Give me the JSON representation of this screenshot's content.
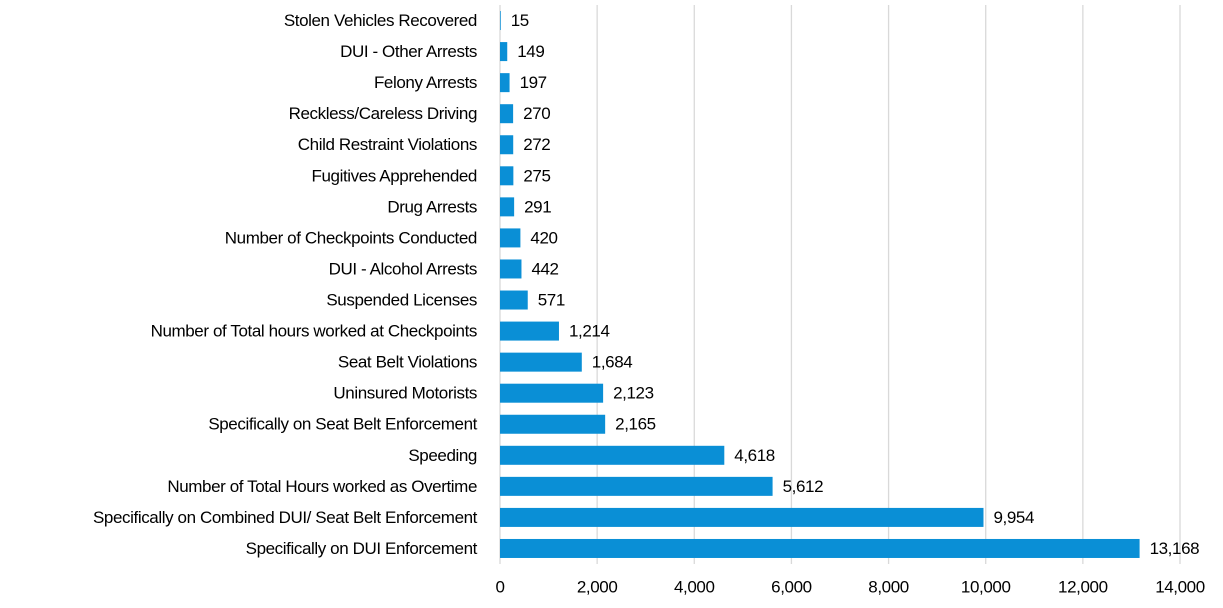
{
  "chart_data": {
    "type": "barh",
    "categories": [
      "Stolen Vehicles Recovered",
      "DUI - Other Arrests",
      "Felony Arrests",
      "Reckless/Careless Driving",
      "Child Restraint Violations",
      "Fugitives Apprehended",
      "Drug Arrests",
      "Number of Checkpoints Conducted",
      "DUI - Alcohol Arrests",
      "Suspended Licenses",
      "Number of Total hours worked at Checkpoints",
      "Seat Belt Violations",
      "Uninsured Motorists",
      "Specifically on Seat Belt Enforcement",
      "Speeding",
      "Number of Total Hours worked as Overtime",
      "Specifically on Combined DUI/ Seat Belt Enforcement",
      "Specifically on DUI Enforcement"
    ],
    "values": [
      15,
      149,
      197,
      270,
      272,
      275,
      291,
      420,
      442,
      571,
      1214,
      1684,
      2123,
      2165,
      4618,
      5612,
      9954,
      13168
    ],
    "value_labels": [
      "15",
      "149",
      "197",
      "270",
      "272",
      "275",
      "291",
      "420",
      "442",
      "571",
      "1,214",
      "1,684",
      "2,123",
      "2,165",
      "4,618",
      "5,612",
      "9,954",
      "13,168"
    ],
    "color": "#0a8fd6",
    "xlim": [
      0,
      14000
    ],
    "xticks": [
      0,
      {
        "value": 2000,
        "label": "2,000"
      },
      {
        "value": 4000,
        "label": "4,000"
      },
      {
        "value": 6000,
        "label": "6,000"
      },
      {
        "value": 8000,
        "label": "8,000"
      },
      {
        "value": 10000,
        "label": "10,000"
      },
      {
        "value": 12000,
        "label": "12,000"
      },
      {
        "value": 14000,
        "label": "14,000"
      }
    ],
    "grid": true
  }
}
